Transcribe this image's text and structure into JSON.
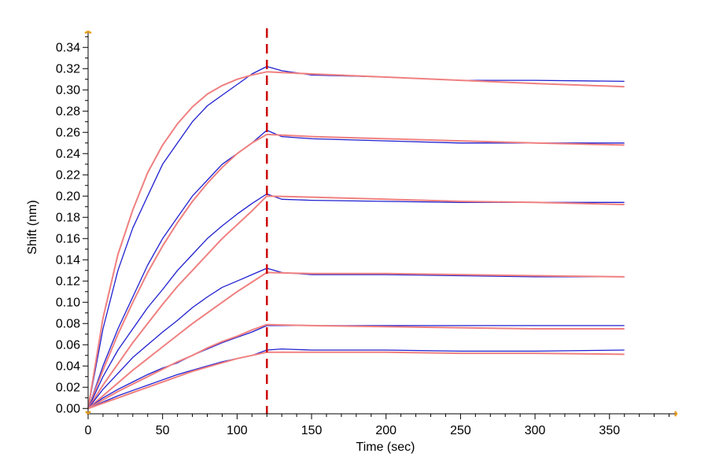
{
  "chart_data": {
    "type": "line",
    "title": "",
    "xlabel": "Time (sec)",
    "ylabel": "Shift (nm)",
    "xlim": [
      0,
      395
    ],
    "ylim": [
      -0.005,
      0.355
    ],
    "x_ticks": [
      0,
      50,
      100,
      150,
      200,
      250,
      300,
      350
    ],
    "x_tick_labels": [
      "0",
      "50",
      "100",
      "150",
      "200",
      "250",
      "300",
      "350"
    ],
    "y_ticks": [
      0.0,
      0.02,
      0.04,
      0.06,
      0.08,
      0.1,
      0.12,
      0.14,
      0.16,
      0.18,
      0.2,
      0.22,
      0.24,
      0.26,
      0.28,
      0.3,
      0.32,
      0.34
    ],
    "y_tick_labels": [
      "0.00",
      "0.02",
      "0.04",
      "0.06",
      "0.08",
      "0.10",
      "0.12",
      "0.14",
      "0.16",
      "0.18",
      "0.20",
      "0.22",
      "0.24",
      "0.26",
      "0.28",
      "0.30",
      "0.32",
      "0.34"
    ],
    "grid": false,
    "legend": "none",
    "annotations": [
      {
        "type": "vertical-dashed-line",
        "x": 120,
        "color": "#cc0000"
      }
    ],
    "series": [
      {
        "kind": "measured",
        "color": "#2020d0",
        "x": [
          0,
          10,
          20,
          30,
          40,
          50,
          60,
          70,
          80,
          90,
          100,
          110,
          120,
          130,
          150,
          200,
          250,
          300,
          360
        ],
        "y": [
          0.0,
          0.075,
          0.13,
          0.17,
          0.2,
          0.23,
          0.25,
          0.27,
          0.285,
          0.295,
          0.305,
          0.315,
          0.322,
          0.318,
          0.314,
          0.312,
          0.309,
          0.309,
          0.308
        ]
      },
      {
        "kind": "fit",
        "color": "#f08080",
        "x": [
          0,
          10,
          20,
          30,
          40,
          50,
          60,
          70,
          80,
          90,
          100,
          110,
          120,
          150,
          200,
          250,
          300,
          360
        ],
        "y": [
          0.0,
          0.085,
          0.145,
          0.187,
          0.222,
          0.248,
          0.268,
          0.284,
          0.296,
          0.304,
          0.31,
          0.314,
          0.317,
          0.315,
          0.312,
          0.309,
          0.306,
          0.303
        ]
      },
      {
        "kind": "measured",
        "color": "#2020d0",
        "x": [
          0,
          10,
          20,
          30,
          40,
          50,
          60,
          70,
          80,
          90,
          100,
          110,
          120,
          130,
          150,
          200,
          250,
          300,
          360
        ],
        "y": [
          0.0,
          0.04,
          0.075,
          0.105,
          0.135,
          0.16,
          0.18,
          0.2,
          0.215,
          0.23,
          0.24,
          0.25,
          0.262,
          0.256,
          0.254,
          0.252,
          0.25,
          0.25,
          0.25
        ]
      },
      {
        "kind": "fit",
        "color": "#f08080",
        "x": [
          0,
          10,
          20,
          30,
          40,
          50,
          60,
          70,
          80,
          90,
          100,
          110,
          120,
          150,
          200,
          250,
          300,
          360
        ],
        "y": [
          0.0,
          0.036,
          0.07,
          0.1,
          0.128,
          0.153,
          0.175,
          0.195,
          0.212,
          0.227,
          0.24,
          0.25,
          0.258,
          0.256,
          0.254,
          0.252,
          0.25,
          0.248
        ]
      },
      {
        "kind": "measured",
        "color": "#2020d0",
        "x": [
          0,
          10,
          20,
          30,
          40,
          50,
          60,
          70,
          80,
          90,
          100,
          110,
          120,
          130,
          150,
          200,
          250,
          300,
          360
        ],
        "y": [
          0.0,
          0.03,
          0.055,
          0.075,
          0.095,
          0.112,
          0.13,
          0.145,
          0.16,
          0.172,
          0.183,
          0.193,
          0.202,
          0.197,
          0.196,
          0.195,
          0.194,
          0.194,
          0.194
        ]
      },
      {
        "kind": "fit",
        "color": "#f08080",
        "x": [
          0,
          10,
          20,
          30,
          40,
          50,
          60,
          70,
          80,
          90,
          100,
          110,
          120,
          150,
          200,
          250,
          300,
          360
        ],
        "y": [
          0.0,
          0.022,
          0.042,
          0.062,
          0.08,
          0.098,
          0.115,
          0.13,
          0.145,
          0.16,
          0.173,
          0.186,
          0.2,
          0.199,
          0.197,
          0.195,
          0.194,
          0.192
        ]
      },
      {
        "kind": "measured",
        "color": "#2020d0",
        "x": [
          0,
          10,
          20,
          30,
          40,
          50,
          60,
          70,
          80,
          90,
          100,
          110,
          120,
          130,
          150,
          200,
          250,
          300,
          360
        ],
        "y": [
          0.0,
          0.018,
          0.033,
          0.048,
          0.06,
          0.072,
          0.083,
          0.095,
          0.105,
          0.114,
          0.12,
          0.126,
          0.132,
          0.128,
          0.126,
          0.126,
          0.125,
          0.124,
          0.124
        ]
      },
      {
        "kind": "fit",
        "color": "#f08080",
        "x": [
          0,
          10,
          20,
          30,
          40,
          50,
          60,
          70,
          80,
          90,
          100,
          110,
          120,
          150,
          200,
          250,
          300,
          360
        ],
        "y": [
          0.0,
          0.012,
          0.024,
          0.036,
          0.047,
          0.058,
          0.069,
          0.08,
          0.09,
          0.1,
          0.11,
          0.119,
          0.128,
          0.127,
          0.127,
          0.126,
          0.125,
          0.124
        ]
      },
      {
        "kind": "measured",
        "color": "#2020d0",
        "x": [
          0,
          10,
          20,
          30,
          40,
          50,
          60,
          70,
          80,
          90,
          100,
          110,
          120,
          130,
          150,
          200,
          250,
          300,
          360
        ],
        "y": [
          0.0,
          0.01,
          0.018,
          0.025,
          0.032,
          0.038,
          0.043,
          0.05,
          0.056,
          0.062,
          0.067,
          0.072,
          0.078,
          0.078,
          0.078,
          0.078,
          0.078,
          0.078,
          0.078
        ]
      },
      {
        "kind": "fit",
        "color": "#f08080",
        "x": [
          0,
          10,
          20,
          30,
          40,
          50,
          60,
          70,
          80,
          90,
          100,
          110,
          120,
          150,
          200,
          250,
          300,
          360
        ],
        "y": [
          0.0,
          0.008,
          0.016,
          0.023,
          0.03,
          0.037,
          0.044,
          0.05,
          0.057,
          0.063,
          0.068,
          0.074,
          0.079,
          0.078,
          0.077,
          0.076,
          0.075,
          0.075
        ]
      },
      {
        "kind": "measured",
        "color": "#2020d0",
        "x": [
          0,
          10,
          20,
          30,
          40,
          50,
          60,
          70,
          80,
          90,
          100,
          110,
          120,
          130,
          150,
          200,
          250,
          300,
          360
        ],
        "y": [
          0.0,
          0.006,
          0.012,
          0.017,
          0.022,
          0.027,
          0.032,
          0.036,
          0.04,
          0.044,
          0.047,
          0.05,
          0.055,
          0.056,
          0.055,
          0.055,
          0.054,
          0.054,
          0.055
        ]
      },
      {
        "kind": "fit",
        "color": "#f08080",
        "x": [
          0,
          10,
          20,
          30,
          40,
          50,
          60,
          70,
          80,
          90,
          100,
          110,
          120,
          150,
          200,
          250,
          300,
          360
        ],
        "y": [
          0.0,
          0.005,
          0.01,
          0.015,
          0.02,
          0.025,
          0.03,
          0.035,
          0.039,
          0.043,
          0.047,
          0.05,
          0.053,
          0.053,
          0.053,
          0.052,
          0.052,
          0.051
        ]
      }
    ]
  }
}
